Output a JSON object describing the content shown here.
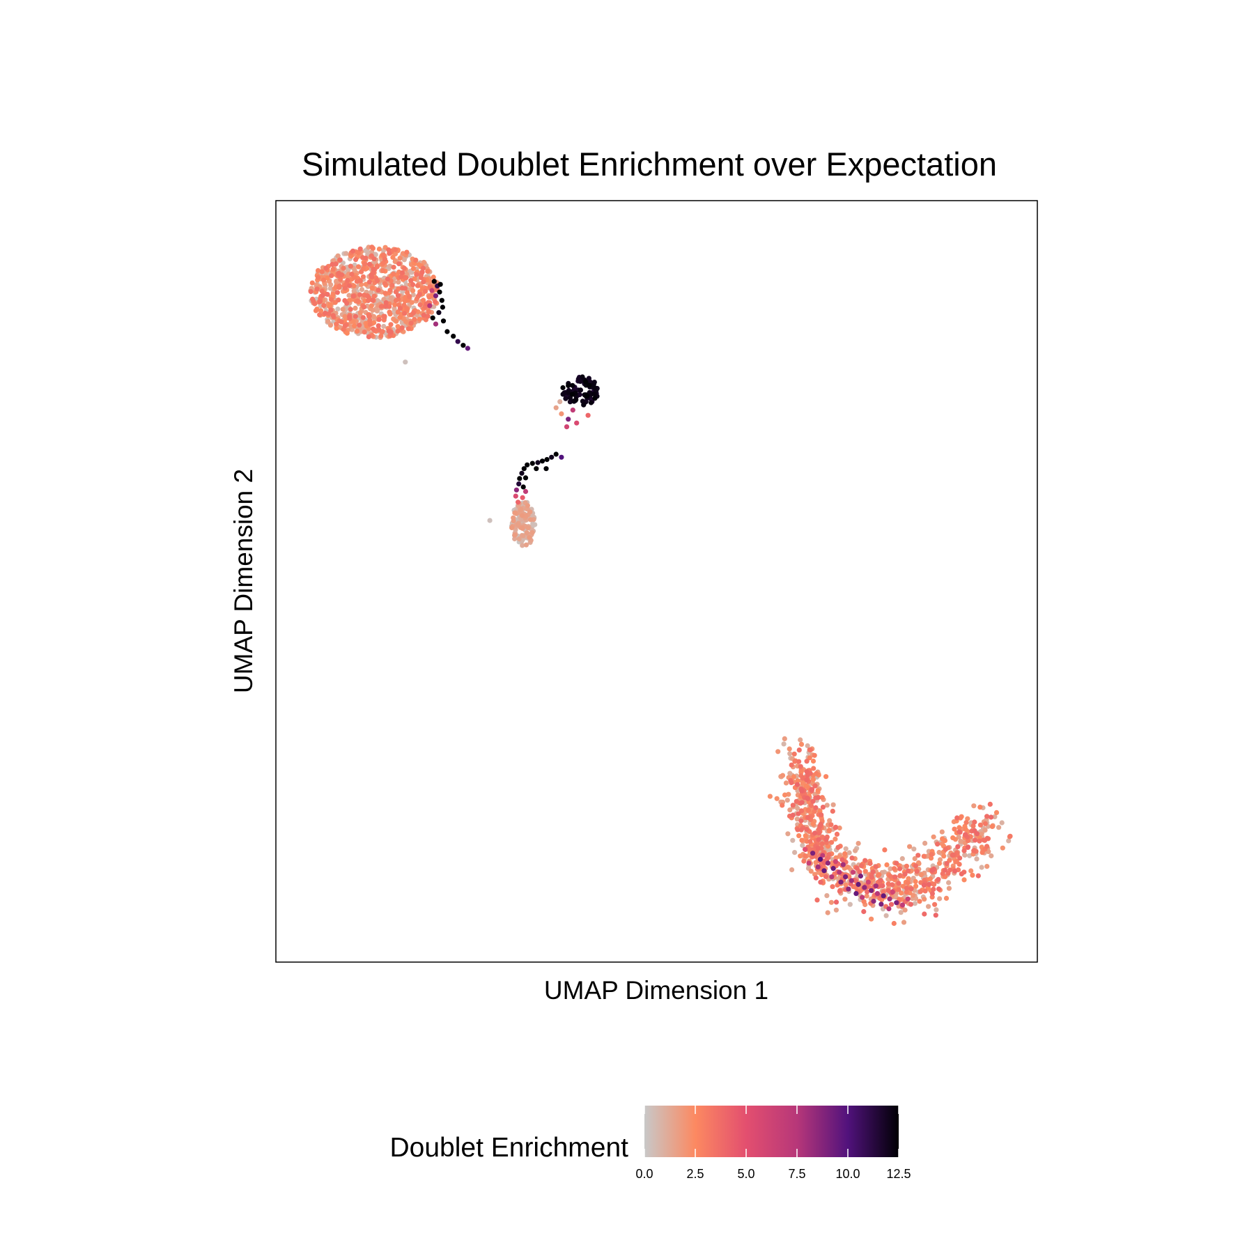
{
  "chart_data": {
    "type": "scatter",
    "title": "Simulated Doublet Enrichment over Expectation",
    "xlabel": "UMAP Dimension 1",
    "ylabel": "UMAP Dimension 2",
    "axis_ticks_shown": false,
    "grid": false,
    "xlim": [
      0,
      100
    ],
    "ylim": [
      0,
      100
    ],
    "color_variable": "Doublet Enrichment",
    "colorbar": {
      "title": "Doublet Enrichment",
      "position": "bottom",
      "range": [
        0,
        12.5
      ],
      "ticks": [
        "0.0",
        "2.5",
        "5.0",
        "7.5",
        "10.0",
        "12.5"
      ],
      "colors": [
        {
          "value": 0,
          "color": "#c8c8c8"
        },
        {
          "value": 2.5,
          "color": "#fc8961"
        },
        {
          "value": 5.0,
          "color": "#e34f6f"
        },
        {
          "value": 7.5,
          "color": "#b73779"
        },
        {
          "value": 10.0,
          "color": "#51127c"
        },
        {
          "value": 12.5,
          "color": "#000004"
        }
      ]
    },
    "clusters": [
      {
        "cx": 13,
        "cy": 88,
        "rx": 8.5,
        "ry": 6.0,
        "n": 900,
        "vmin": 0.3,
        "vmax": 3.6,
        "shape": "ellipse"
      },
      {
        "cx": 40,
        "cy": 75,
        "rx": 2.4,
        "ry": 1.9,
        "n": 85,
        "vmin": 11.5,
        "vmax": 12.5,
        "shape": "ellipse"
      },
      {
        "cx": 32.5,
        "cy": 57.5,
        "rx": 1.6,
        "ry": 3.0,
        "n": 130,
        "vmin": 0.0,
        "vmax": 1.8,
        "shape": "ellipse"
      },
      {
        "cx": 84,
        "cy": 10,
        "rx": 15,
        "ry": 8,
        "n": 950,
        "vmin": 0.5,
        "vmax": 4.0,
        "shape": "arc"
      }
    ],
    "highlighted_points": [
      {
        "x": 20.8,
        "y": 89.4,
        "v": 12.5
      },
      {
        "x": 21.2,
        "y": 88.8,
        "v": 11.0
      },
      {
        "x": 21.5,
        "y": 88.0,
        "v": 12.5
      },
      {
        "x": 21.0,
        "y": 87.5,
        "v": 9.0
      },
      {
        "x": 21.8,
        "y": 86.9,
        "v": 12.5
      },
      {
        "x": 20.2,
        "y": 86.2,
        "v": 7.5
      },
      {
        "x": 21.9,
        "y": 86.0,
        "v": 12.5
      },
      {
        "x": 21.4,
        "y": 85.3,
        "v": 12.0
      },
      {
        "x": 20.6,
        "y": 84.6,
        "v": 12.5
      },
      {
        "x": 22.0,
        "y": 84.2,
        "v": 12.5
      },
      {
        "x": 21.0,
        "y": 83.8,
        "v": 8.0
      },
      {
        "x": 22.5,
        "y": 82.8,
        "v": 12.5
      },
      {
        "x": 23.3,
        "y": 82.2,
        "v": 12.5
      },
      {
        "x": 23.9,
        "y": 81.5,
        "v": 11.0
      },
      {
        "x": 24.6,
        "y": 81.0,
        "v": 12.5
      },
      {
        "x": 25.2,
        "y": 80.6,
        "v": 9.5
      },
      {
        "x": 20.5,
        "y": 88.2,
        "v": 6.5
      },
      {
        "x": 21.6,
        "y": 89.0,
        "v": 12.5
      },
      {
        "x": 36.8,
        "y": 72.8,
        "v": 1.5
      },
      {
        "x": 37.5,
        "y": 72.0,
        "v": 2.0
      },
      {
        "x": 38.4,
        "y": 71.3,
        "v": 9.0
      },
      {
        "x": 39.5,
        "y": 70.8,
        "v": 5.5
      },
      {
        "x": 38.2,
        "y": 70.3,
        "v": 6.0
      },
      {
        "x": 41.0,
        "y": 71.8,
        "v": 4.0
      },
      {
        "x": 37.3,
        "y": 73.6,
        "v": 1.0
      },
      {
        "x": 39.0,
        "y": 72.5,
        "v": 7.0
      },
      {
        "x": 36.8,
        "y": 66.7,
        "v": 12.5
      },
      {
        "x": 36.2,
        "y": 66.3,
        "v": 12.0
      },
      {
        "x": 35.6,
        "y": 66.0,
        "v": 12.5
      },
      {
        "x": 35.0,
        "y": 65.8,
        "v": 12.5
      },
      {
        "x": 34.4,
        "y": 65.6,
        "v": 12.0
      },
      {
        "x": 33.7,
        "y": 65.5,
        "v": 12.5
      },
      {
        "x": 33.0,
        "y": 65.3,
        "v": 12.5
      },
      {
        "x": 32.6,
        "y": 64.8,
        "v": 12.5
      },
      {
        "x": 32.3,
        "y": 64.2,
        "v": 12.0
      },
      {
        "x": 32.0,
        "y": 63.5,
        "v": 12.5
      },
      {
        "x": 32.8,
        "y": 63.6,
        "v": 12.5
      },
      {
        "x": 31.9,
        "y": 62.8,
        "v": 11.5
      },
      {
        "x": 32.5,
        "y": 62.4,
        "v": 12.5
      },
      {
        "x": 31.6,
        "y": 62.0,
        "v": 8.5
      },
      {
        "x": 32.8,
        "y": 61.8,
        "v": 7.0
      },
      {
        "x": 31.5,
        "y": 61.2,
        "v": 5.5
      },
      {
        "x": 32.4,
        "y": 61.0,
        "v": 4.5
      },
      {
        "x": 31.8,
        "y": 60.4,
        "v": 4.0
      },
      {
        "x": 37.5,
        "y": 66.3,
        "v": 10.0
      },
      {
        "x": 35.5,
        "y": 64.8,
        "v": 12.5
      },
      {
        "x": 34.2,
        "y": 64.8,
        "v": 12.5
      },
      {
        "x": 28.1,
        "y": 58.0,
        "v": 0.3
      },
      {
        "x": 17.0,
        "y": 78.8,
        "v": 0.3
      },
      {
        "x": 70.5,
        "y": 14.3,
        "v": 9.0
      },
      {
        "x": 71.5,
        "y": 13.5,
        "v": 10.0
      },
      {
        "x": 72.5,
        "y": 13.0,
        "v": 8.5
      },
      {
        "x": 73.2,
        "y": 12.3,
        "v": 9.5
      },
      {
        "x": 74.0,
        "y": 11.8,
        "v": 7.5
      },
      {
        "x": 74.8,
        "y": 11.2,
        "v": 9.0
      },
      {
        "x": 75.6,
        "y": 10.7,
        "v": 8.0
      },
      {
        "x": 76.5,
        "y": 10.2,
        "v": 9.5
      },
      {
        "x": 77.3,
        "y": 9.8,
        "v": 8.5
      },
      {
        "x": 78.2,
        "y": 9.4,
        "v": 9.0
      },
      {
        "x": 79.0,
        "y": 9.0,
        "v": 7.5
      },
      {
        "x": 79.8,
        "y": 8.7,
        "v": 9.5
      },
      {
        "x": 80.6,
        "y": 8.3,
        "v": 8.0
      },
      {
        "x": 81.5,
        "y": 7.8,
        "v": 9.0
      },
      {
        "x": 82.3,
        "y": 7.5,
        "v": 7.0
      },
      {
        "x": 71.2,
        "y": 12.5,
        "v": 8.0
      },
      {
        "x": 72.0,
        "y": 12.0,
        "v": 9.5
      },
      {
        "x": 73.0,
        "y": 11.2,
        "v": 7.5
      },
      {
        "x": 74.2,
        "y": 10.5,
        "v": 9.0
      },
      {
        "x": 75.2,
        "y": 9.6,
        "v": 8.5
      },
      {
        "x": 76.2,
        "y": 9.0,
        "v": 9.5
      },
      {
        "x": 77.0,
        "y": 8.5,
        "v": 7.0
      },
      {
        "x": 78.5,
        "y": 8.0,
        "v": 8.5
      },
      {
        "x": 79.5,
        "y": 7.6,
        "v": 9.0
      },
      {
        "x": 80.5,
        "y": 7.0,
        "v": 7.5
      },
      {
        "x": 70.0,
        "y": 13.0,
        "v": 6.5
      },
      {
        "x": 71.8,
        "y": 14.0,
        "v": 7.0
      },
      {
        "x": 73.5,
        "y": 13.2,
        "v": 6.0
      },
      {
        "x": 75.8,
        "y": 11.8,
        "v": 6.5
      },
      {
        "x": 77.8,
        "y": 10.5,
        "v": 6.0
      },
      {
        "x": 83.0,
        "y": 8.3,
        "v": 6.5
      },
      {
        "x": 81.0,
        "y": 9.2,
        "v": 6.0
      },
      {
        "x": 69.5,
        "y": 14.8,
        "v": 5.0
      },
      {
        "x": 74.5,
        "y": 12.8,
        "v": 8.0
      },
      {
        "x": 76.8,
        "y": 11.3,
        "v": 9.0
      },
      {
        "x": 78.8,
        "y": 10.0,
        "v": 8.0
      }
    ]
  }
}
